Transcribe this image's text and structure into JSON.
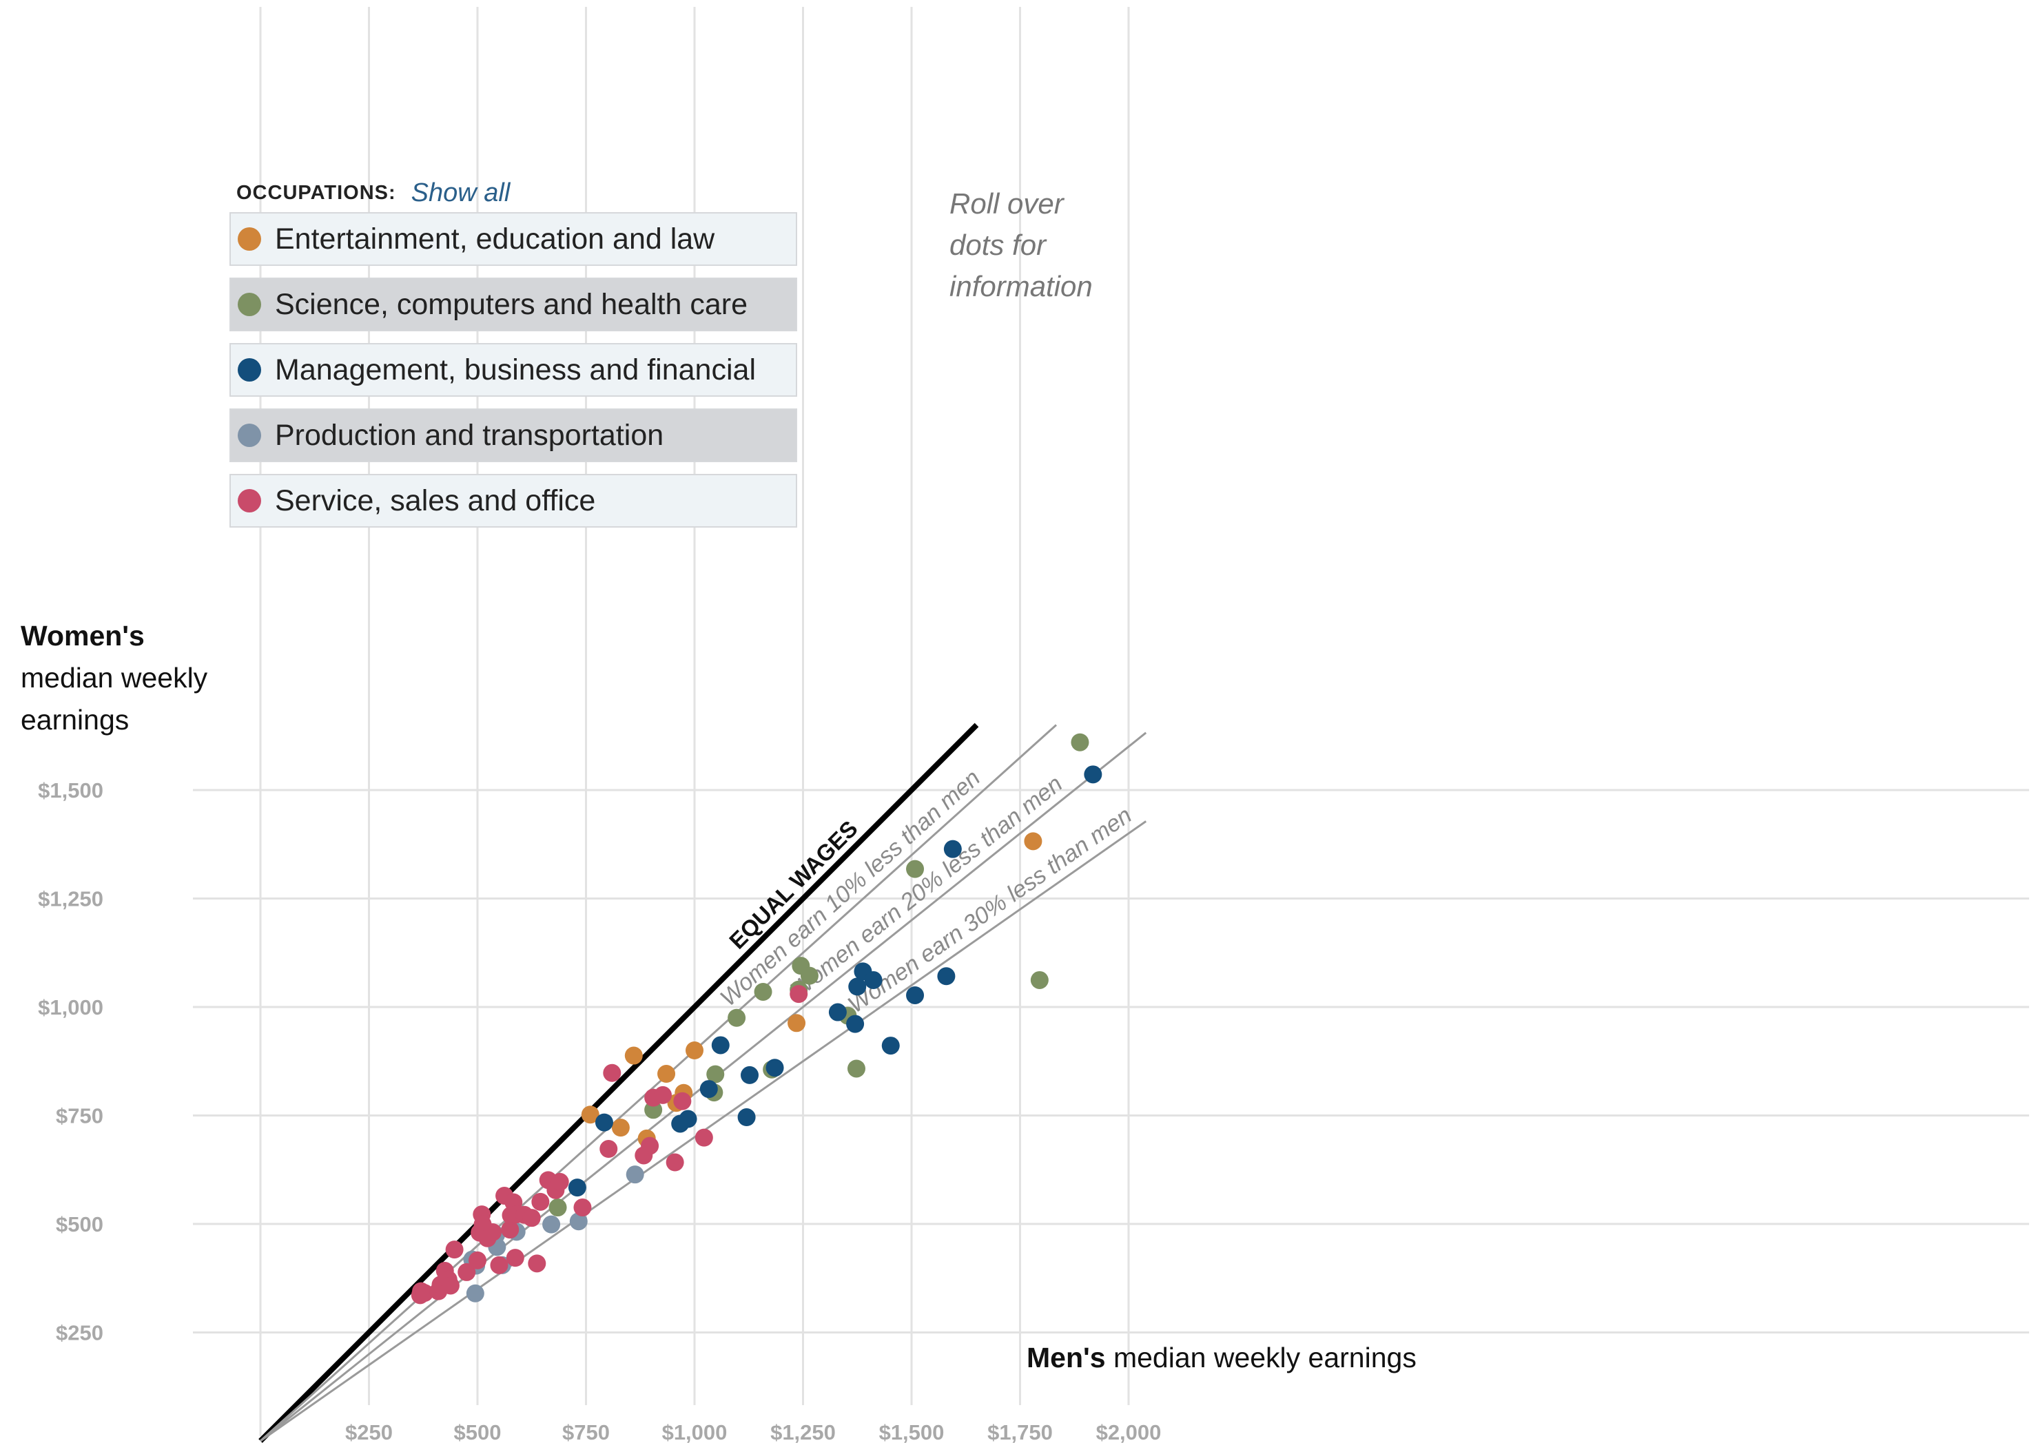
{
  "legend": {
    "title": "OCCUPATIONS:",
    "show_all": "Show all",
    "items": [
      {
        "key": "ent",
        "label": "Entertainment, education and law",
        "color": "#d0853a",
        "background": "#eef3f6"
      },
      {
        "key": "sci",
        "label": "Science, computers and health care",
        "color": "#7d9162",
        "background": "#d4d6d9"
      },
      {
        "key": "mgmt",
        "label": "Management, business and financial",
        "color": "#134e7c",
        "background": "#eef3f6"
      },
      {
        "key": "prod",
        "label": "Production and transportation",
        "color": "#7f93a8",
        "background": "#d4d6d9"
      },
      {
        "key": "svc",
        "label": "Service, sales and office",
        "color": "#c94b6a",
        "background": "#eef3f6"
      }
    ]
  },
  "hint": {
    "line1": "Roll over",
    "line2": "dots for",
    "line3": "information"
  },
  "y_axis": {
    "label_bold": "Women's",
    "label_line2": "median weekly",
    "label_line3": "earnings"
  },
  "x_axis": {
    "label_bold": "Men's",
    "label_rest": "median weekly earnings"
  },
  "chart_data": {
    "type": "scatter",
    "xlim": [
      0,
      2000
    ],
    "ylim": [
      0,
      1650
    ],
    "x_ticks": [
      250,
      500,
      750,
      1000,
      1250,
      1500,
      1750,
      2000
    ],
    "x_tick_labels": [
      "$250",
      "$500",
      "$750",
      "$1,000",
      "$1,250",
      "$1,500",
      "$1,750",
      "$2,000"
    ],
    "y_ticks": [
      250,
      500,
      750,
      1000,
      1250,
      1500
    ],
    "y_tick_labels": [
      "$250",
      "$500",
      "$750",
      "$1,000",
      "$1,250",
      "$1,500"
    ],
    "grid": true,
    "reference_lines": [
      {
        "ratio": 1.0,
        "label": "EQUAL WAGES",
        "style": "bold"
      },
      {
        "ratio": 0.9,
        "label": "Women earn 10% less than men",
        "style": "thin"
      },
      {
        "ratio": 0.8,
        "label": "Women earn 20% less than men",
        "style": "thin"
      },
      {
        "ratio": 0.7,
        "label": "Women earn 30% less than men",
        "style": "thin"
      }
    ],
    "series": [
      {
        "key": "ent",
        "name": "Entertainment, education and law",
        "points": [
          [
            760,
            752
          ],
          [
            830,
            722
          ],
          [
            860,
            888
          ],
          [
            890,
            697
          ],
          [
            935,
            846
          ],
          [
            958,
            779
          ],
          [
            975,
            802
          ],
          [
            1000,
            900
          ],
          [
            1235,
            963
          ],
          [
            1780,
            1382
          ]
        ]
      },
      {
        "key": "sci",
        "name": "Science, computers and health care",
        "points": [
          [
            685,
            538
          ],
          [
            905,
            763
          ],
          [
            1045,
            803
          ],
          [
            1048,
            845
          ],
          [
            1097,
            975
          ],
          [
            1158,
            1035
          ],
          [
            1178,
            856
          ],
          [
            1240,
            1040
          ],
          [
            1245,
            1095
          ],
          [
            1265,
            1072
          ],
          [
            1353,
            980
          ],
          [
            1373,
            858
          ],
          [
            1508,
            1318
          ],
          [
            1795,
            1062
          ],
          [
            1888,
            1610
          ]
        ]
      },
      {
        "key": "mgmt",
        "name": "Management, business and financial",
        "points": [
          [
            730,
            584
          ],
          [
            792,
            734
          ],
          [
            967,
            731
          ],
          [
            985,
            742
          ],
          [
            1033,
            811
          ],
          [
            1060,
            912
          ],
          [
            1120,
            746
          ],
          [
            1127,
            843
          ],
          [
            1185,
            860
          ],
          [
            1330,
            988
          ],
          [
            1370,
            961
          ],
          [
            1375,
            1047
          ],
          [
            1388,
            1082
          ],
          [
            1412,
            1062
          ],
          [
            1452,
            911
          ],
          [
            1508,
            1027
          ],
          [
            1580,
            1071
          ],
          [
            1595,
            1364
          ],
          [
            1918,
            1536
          ]
        ]
      },
      {
        "key": "prod",
        "name": "Production and transportation",
        "points": [
          [
            488,
            418
          ],
          [
            495,
            340
          ],
          [
            497,
            404
          ],
          [
            543,
            475
          ],
          [
            545,
            447
          ],
          [
            557,
            405
          ],
          [
            590,
            482
          ],
          [
            670,
            499
          ],
          [
            733,
            506
          ],
          [
            863,
            614
          ]
        ]
      },
      {
        "key": "svc",
        "name": "Service, sales and office",
        "points": [
          [
            368,
            336
          ],
          [
            370,
            345
          ],
          [
            378,
            341
          ],
          [
            410,
            345
          ],
          [
            415,
            360
          ],
          [
            425,
            392
          ],
          [
            433,
            372
          ],
          [
            438,
            358
          ],
          [
            447,
            441
          ],
          [
            475,
            389
          ],
          [
            500,
            416
          ],
          [
            505,
            480
          ],
          [
            510,
            522
          ],
          [
            512,
            499
          ],
          [
            523,
            467
          ],
          [
            535,
            481
          ],
          [
            550,
            405
          ],
          [
            562,
            565
          ],
          [
            575,
            487
          ],
          [
            577,
            520
          ],
          [
            583,
            550
          ],
          [
            587,
            422
          ],
          [
            590,
            522
          ],
          [
            608,
            521
          ],
          [
            625,
            514
          ],
          [
            645,
            551
          ],
          [
            663,
            601
          ],
          [
            637,
            409
          ],
          [
            680,
            578
          ],
          [
            690,
            597
          ],
          [
            742,
            538
          ],
          [
            802,
            673
          ],
          [
            810,
            848
          ],
          [
            883,
            658
          ],
          [
            897,
            680
          ],
          [
            905,
            791
          ],
          [
            927,
            797
          ],
          [
            955,
            642
          ],
          [
            972,
            783
          ],
          [
            1022,
            699
          ],
          [
            1240,
            1030
          ]
        ]
      }
    ]
  }
}
